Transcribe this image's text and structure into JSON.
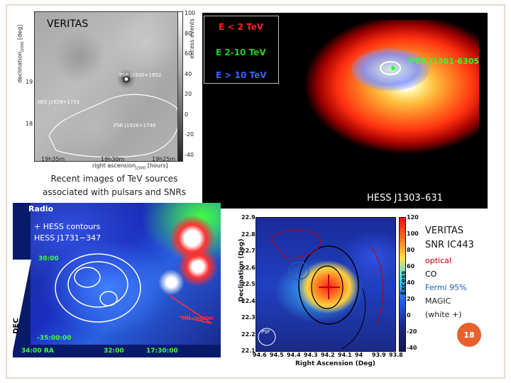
{
  "slide": {
    "page_number": "18",
    "caption": [
      "Recent images of TeV sources",
      "associated with pulsars and SNRs"
    ],
    "accent_color": "#e8602c"
  },
  "veritas_map": {
    "title": "VERITAS",
    "y_label": "declination",
    "y_label_sub": "J2000",
    "y_unit": "[deg]",
    "y_ticks": [
      "19",
      "18"
    ],
    "x_ticks": [
      "19h35m",
      "19h30m",
      "19h25m"
    ],
    "x_label": "right ascension",
    "x_label_sub": "J2000",
    "x_unit": "[hours]",
    "colorbar_label": "excess events",
    "colorbar_ticks": [
      "100",
      "80",
      "60",
      "40",
      "20",
      "0",
      "-20",
      "-40"
    ],
    "sources": [
      "PSR J1930+1852",
      "3EG J1928+1733",
      "PSR J1928+1746"
    ]
  },
  "hess_j1303": {
    "legend": [
      "E < 2 TeV",
      "E 2-10 TeV",
      "E > 10 TeV"
    ],
    "legend_colors": [
      "#ff2020",
      "#20d020",
      "#4060ff"
    ],
    "pulsar": "PSR J1301-6305",
    "caption": "HESS J1303–631"
  },
  "hess_j1731": {
    "band": "Radio",
    "overlay_lines": [
      "+ HESS contours",
      "HESS J1731−347"
    ],
    "region_label": "HII region",
    "y_label": "DEC",
    "y_ticks": [
      "30:00",
      "-35:00:00"
    ],
    "x_ticks": [
      "34:00",
      "RA",
      "32:00",
      "17:30:00"
    ]
  },
  "ic443": {
    "y_label": "Declination (Deg)",
    "y_ticks": [
      "22.9",
      "22.8",
      "22.7",
      "22.6",
      "22.5",
      "22.4",
      "22.3",
      "22.2",
      "22.1"
    ],
    "x_label": "Right Ascension (Deg)",
    "x_ticks": [
      "94.6",
      "94.5",
      "94.4",
      "94.3",
      "94.2",
      "94.1",
      "94",
      "93.9",
      "93.8"
    ],
    "colorbar_label": "Excess",
    "colorbar_ticks": [
      "120",
      "100",
      "80",
      "60",
      "40",
      "20",
      "0",
      "-20",
      "-40"
    ],
    "psf_label": "PSF"
  },
  "ic443_legend": {
    "title_lines": [
      "VERITAS",
      "SNR IC443"
    ],
    "items": [
      {
        "text": "optical",
        "color": "#c00000"
      },
      {
        "text": "CO",
        "color": "#000000"
      },
      {
        "text": "Fermi 95%",
        "color": "#1a5fb4"
      },
      {
        "text": "MAGIC",
        "color": "#222222"
      },
      {
        "text": "(white +)",
        "color": "#222222"
      }
    ]
  }
}
